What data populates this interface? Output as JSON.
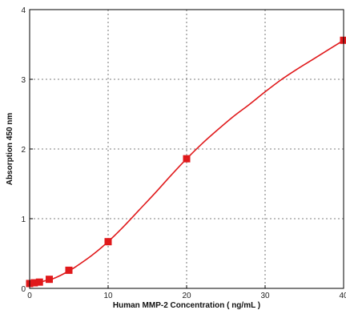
{
  "chart_data": {
    "type": "line",
    "title": "",
    "xlabel": "Human MMP-2 Concentration ( ng/mL )",
    "ylabel": "Absorption 450 nm",
    "xlim": [
      0,
      40
    ],
    "ylim": [
      0,
      4
    ],
    "x_ticks": [
      0,
      10,
      20,
      30,
      40
    ],
    "x_tick_labels": [
      "0",
      "10",
      "20",
      "30",
      "40"
    ],
    "y_ticks": [
      0,
      1,
      2,
      3,
      4
    ],
    "y_tick_labels": [
      "0",
      "1",
      "2",
      "3",
      "4"
    ],
    "grid": true,
    "series": [
      {
        "color": "#e0191b",
        "marker": "square",
        "points": [
          {
            "x": 0,
            "y": 0.07
          },
          {
            "x": 0.6,
            "y": 0.08
          },
          {
            "x": 1.25,
            "y": 0.09
          },
          {
            "x": 2.5,
            "y": 0.13
          },
          {
            "x": 5,
            "y": 0.26
          },
          {
            "x": 10,
            "y": 0.67
          },
          {
            "x": 20,
            "y": 1.86
          },
          {
            "x": 40,
            "y": 3.56
          }
        ],
        "fit_curve": [
          {
            "x": 0,
            "y": 0.07
          },
          {
            "x": 1,
            "y": 0.08
          },
          {
            "x": 2,
            "y": 0.11
          },
          {
            "x": 3,
            "y": 0.14
          },
          {
            "x": 4,
            "y": 0.19
          },
          {
            "x": 5,
            "y": 0.25
          },
          {
            "x": 6,
            "y": 0.32
          },
          {
            "x": 8,
            "y": 0.48
          },
          {
            "x": 10,
            "y": 0.67
          },
          {
            "x": 12,
            "y": 0.89
          },
          {
            "x": 14,
            "y": 1.13
          },
          {
            "x": 16,
            "y": 1.37
          },
          {
            "x": 18,
            "y": 1.62
          },
          {
            "x": 20,
            "y": 1.86
          },
          {
            "x": 22,
            "y": 2.08
          },
          {
            "x": 24,
            "y": 2.28
          },
          {
            "x": 26,
            "y": 2.47
          },
          {
            "x": 28,
            "y": 2.64
          },
          {
            "x": 30,
            "y": 2.82
          },
          {
            "x": 32,
            "y": 2.99
          },
          {
            "x": 34,
            "y": 3.14
          },
          {
            "x": 36,
            "y": 3.28
          },
          {
            "x": 38,
            "y": 3.42
          },
          {
            "x": 40,
            "y": 3.56
          }
        ]
      }
    ]
  }
}
